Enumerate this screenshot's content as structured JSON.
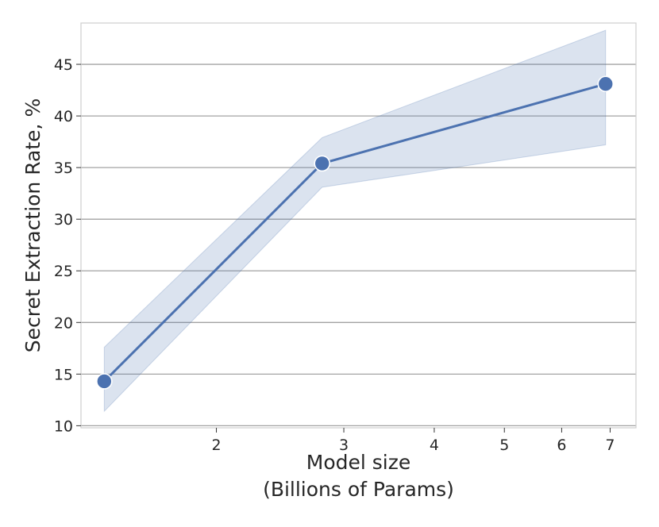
{
  "chart_data": {
    "type": "line",
    "xlabel": [
      "Model size",
      "(Billions of Params)"
    ],
    "ylabel": "Secret Extraction Rate, %",
    "x_scale": "log",
    "xlim": [
      1.3,
      7.6
    ],
    "ylim": [
      9.8,
      49
    ],
    "x_ticks": [
      2,
      3,
      4,
      5,
      6,
      7
    ],
    "y_ticks": [
      10,
      15,
      20,
      25,
      30,
      35,
      40,
      45
    ],
    "grid": "horizontal",
    "legend": "none",
    "colors": {
      "line": "#4c72b0",
      "band": "#4c72b0",
      "grid": "#a3a3a3",
      "frame": "#cfcfcf"
    },
    "series": [
      {
        "x": [
          1.4,
          2.8,
          6.9
        ],
        "y": [
          14.3,
          35.4,
          43.1
        ],
        "ci_low": [
          11.4,
          33.1,
          37.2
        ],
        "ci_high": [
          17.6,
          37.9,
          48.3
        ]
      }
    ]
  }
}
